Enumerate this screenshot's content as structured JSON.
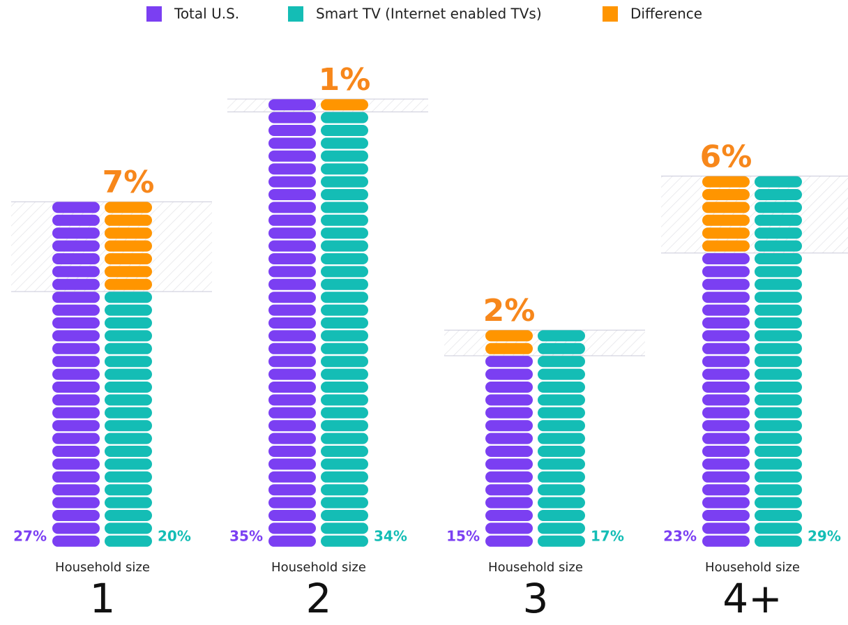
{
  "chart_data": {
    "type": "pictogram",
    "x_label": "Household size",
    "categories": [
      "1",
      "2",
      "3",
      "4+"
    ],
    "series": [
      {
        "name": "Total U.S.",
        "color": "#7b3ff2",
        "values": [
          27,
          35,
          15,
          23
        ],
        "value_labels": [
          "27%",
          "35%",
          "15%",
          "23%"
        ]
      },
      {
        "name": "Smart TV (Internet enabled TVs)",
        "color": "#14bdb5",
        "values": [
          20,
          34,
          17,
          29
        ],
        "value_labels": [
          "20%",
          "34%",
          "17%",
          "29%"
        ]
      },
      {
        "name": "Difference",
        "color": "#ff9500",
        "values": [
          7,
          1,
          2,
          6
        ],
        "value_labels": [
          "7%",
          "1%",
          "2%",
          "6%"
        ]
      }
    ]
  }
}
